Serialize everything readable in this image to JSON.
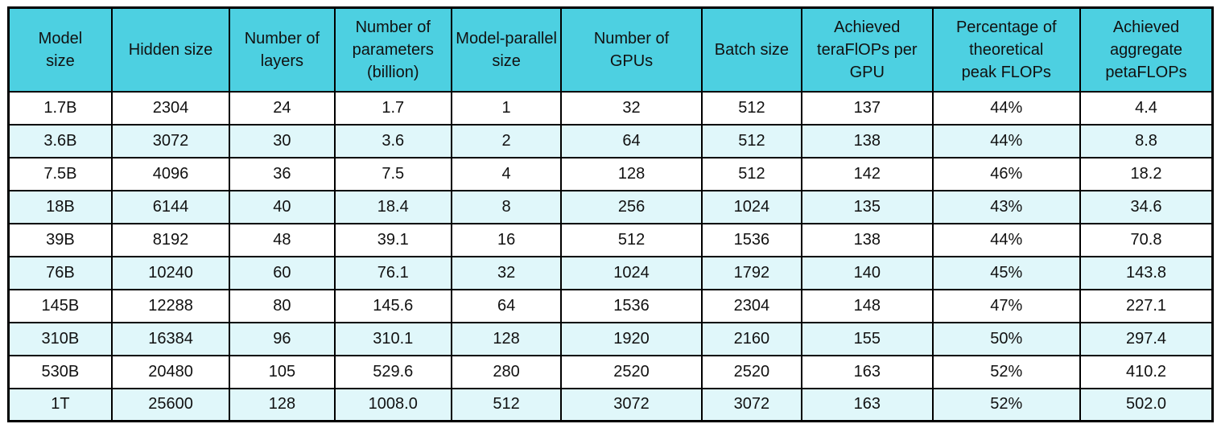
{
  "title": "Model scaling results table",
  "colors": {
    "header_bg": "#4DD0E1",
    "row_alt_bg": "#E0F7FA",
    "row_bg": "#FFFFFF",
    "border": "#000000",
    "text": "#111111"
  },
  "chart_data": {
    "type": "table",
    "layout": {
      "header_row": true,
      "alternating_row_tint": "even rows (2nd, 4th, ...) tinted light cyan",
      "grid": "full black gridlines, all cells center-aligned"
    },
    "columns": [
      "Model\nsize",
      "Hidden size",
      "Number of\nlayers",
      "Number of\nparameters\n(billion)",
      "Model-parallel\nsize",
      "Number of\nGPUs",
      "Batch size",
      "Achieved\nteraFlOPs per\nGPU",
      "Percentage of\ntheoretical\npeak FLOPs",
      "Achieved\naggregate\npetaFLOPs"
    ],
    "rows": [
      [
        "1.7B",
        "2304",
        "24",
        "1.7",
        "1",
        "32",
        "512",
        "137",
        "44%",
        "4.4"
      ],
      [
        "3.6B",
        "3072",
        "30",
        "3.6",
        "2",
        "64",
        "512",
        "138",
        "44%",
        "8.8"
      ],
      [
        "7.5B",
        "4096",
        "36",
        "7.5",
        "4",
        "128",
        "512",
        "142",
        "46%",
        "18.2"
      ],
      [
        "18B",
        "6144",
        "40",
        "18.4",
        "8",
        "256",
        "1024",
        "135",
        "43%",
        "34.6"
      ],
      [
        "39B",
        "8192",
        "48",
        "39.1",
        "16",
        "512",
        "1536",
        "138",
        "44%",
        "70.8"
      ],
      [
        "76B",
        "10240",
        "60",
        "76.1",
        "32",
        "1024",
        "1792",
        "140",
        "45%",
        "143.8"
      ],
      [
        "145B",
        "12288",
        "80",
        "145.6",
        "64",
        "1536",
        "2304",
        "148",
        "47%",
        "227.1"
      ],
      [
        "310B",
        "16384",
        "96",
        "310.1",
        "128",
        "1920",
        "2160",
        "155",
        "50%",
        "297.4"
      ],
      [
        "530B",
        "20480",
        "105",
        "529.6",
        "280",
        "2520",
        "2520",
        "163",
        "52%",
        "410.2"
      ],
      [
        "1T",
        "25600",
        "128",
        "1008.0",
        "512",
        "3072",
        "3072",
        "163",
        "52%",
        "502.0"
      ]
    ]
  }
}
